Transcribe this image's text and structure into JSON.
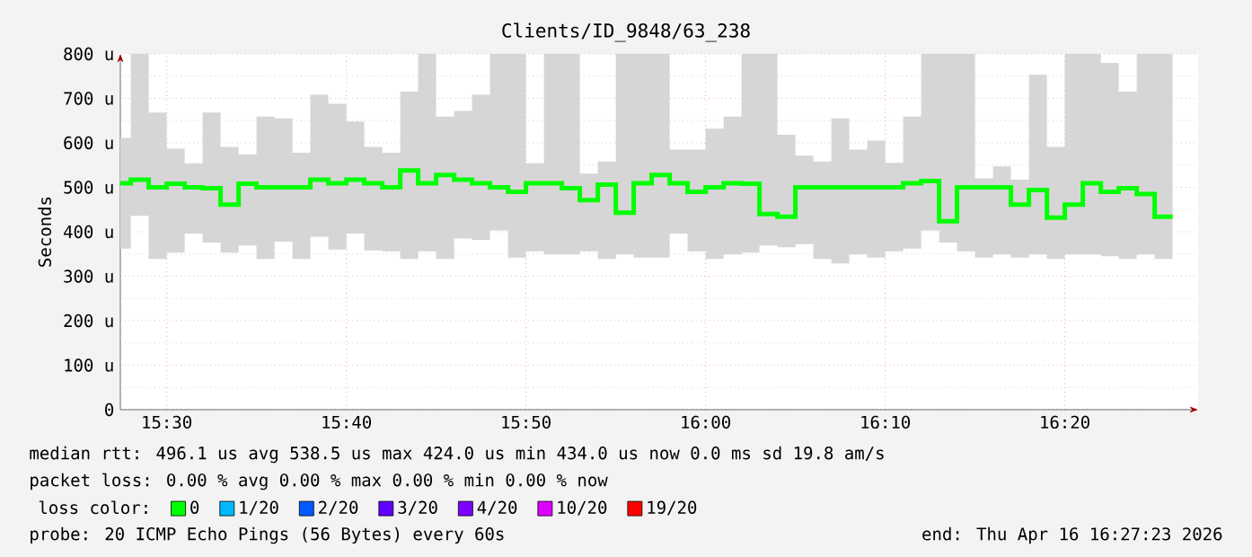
{
  "chart_data": {
    "type": "step",
    "title": "Clients/ID_9848/63_238",
    "ylabel": "Seconds",
    "x": [
      15.457,
      15.4667,
      15.4833,
      15.5,
      15.5167,
      15.5333,
      15.55,
      15.5667,
      15.5833,
      15.6,
      15.6167,
      15.6333,
      15.65,
      15.6667,
      15.6833,
      15.7,
      15.7167,
      15.7333,
      15.75,
      15.7667,
      15.7833,
      15.8,
      15.8167,
      15.8333,
      15.85,
      15.8667,
      15.8833,
      15.9,
      15.9167,
      15.9333,
      15.95,
      15.9667,
      15.9833,
      16.0,
      16.0167,
      16.0333,
      16.05,
      16.0667,
      16.0833,
      16.1,
      16.1167,
      16.1333,
      16.15,
      16.1667,
      16.1833,
      16.2,
      16.2167,
      16.2333,
      16.25,
      16.2667,
      16.2833,
      16.3,
      16.3167,
      16.3333,
      16.35,
      16.3667,
      16.3833,
      16.4,
      16.4167,
      16.4333
    ],
    "series": [
      {
        "name": "0",
        "color": "#00ff00",
        "values": [
          509,
          517,
          500,
          508,
          500,
          498,
          461,
          508,
          500,
          500,
          500,
          517,
          509,
          517,
          509,
          500,
          538,
          509,
          528,
          517,
          509,
          500,
          490,
          509,
          509,
          498,
          471,
          506,
          443,
          509,
          528,
          509,
          490,
          500,
          509,
          508,
          440,
          434,
          500,
          500,
          500,
          500,
          500,
          500,
          509,
          514,
          424,
          500,
          500,
          500,
          461,
          494,
          432,
          461,
          509,
          490,
          498,
          485,
          434,
          434
        ],
        "lower": [
          362,
          436,
          339,
          353,
          396,
          376,
          353,
          369,
          339,
          378,
          339,
          389,
          360,
          396,
          358,
          356,
          339,
          356,
          339,
          385,
          382,
          403,
          342,
          356,
          349,
          349,
          356,
          339,
          349,
          342,
          342,
          396,
          356,
          339,
          349,
          353,
          369,
          365,
          372,
          339,
          329,
          349,
          342,
          356,
          362,
          403,
          376,
          356,
          342,
          349,
          342,
          349,
          339,
          349,
          349,
          345,
          339,
          349,
          339,
          339
        ],
        "upper": [
          611,
          800,
          668,
          587,
          554,
          668,
          591,
          574,
          659,
          655,
          578,
          708,
          688,
          648,
          591,
          578,
          715,
          800,
          659,
          672,
          708,
          800,
          800,
          554,
          800,
          800,
          531,
          558,
          800,
          800,
          800,
          585,
          585,
          632,
          659,
          800,
          800,
          618,
          571,
          558,
          655,
          585,
          605,
          555,
          659,
          800,
          800,
          800,
          520,
          547,
          517,
          753,
          591,
          800,
          800,
          780,
          715,
          800,
          800,
          800
        ]
      },
      {
        "name": "1/20",
        "color": "#00b8ff",
        "values": [
          null,
          null,
          null,
          null,
          null,
          null,
          null,
          null,
          null,
          null,
          null,
          null,
          null,
          null,
          null,
          null,
          null,
          null,
          null,
          null,
          null,
          null,
          null,
          null,
          null,
          null,
          null,
          null,
          null,
          null,
          null,
          null,
          null,
          null,
          null,
          null,
          null,
          null,
          null,
          null,
          null,
          null,
          null,
          null,
          null,
          null,
          null,
          null,
          null,
          null,
          null,
          null,
          null,
          null,
          null,
          null,
          null,
          null,
          null,
          null
        ]
      },
      {
        "name": "2/20",
        "color": "#0059ff",
        "values": [
          null,
          null,
          null,
          null,
          null,
          null,
          null,
          null,
          null,
          null,
          null,
          null,
          null,
          null,
          null,
          null,
          null,
          null,
          null,
          null,
          null,
          null,
          null,
          null,
          null,
          null,
          null,
          null,
          null,
          null,
          null,
          null,
          null,
          null,
          null,
          null,
          null,
          null,
          null,
          null,
          null,
          null,
          null,
          null,
          null,
          null,
          null,
          null,
          null,
          null,
          null,
          null,
          null,
          null,
          null,
          null,
          null,
          null,
          null,
          null
        ]
      },
      {
        "name": "3/20",
        "color": "#5e00ff",
        "values": [
          null,
          null,
          null,
          null,
          null,
          null,
          null,
          null,
          null,
          null,
          null,
          null,
          null,
          null,
          null,
          null,
          null,
          null,
          null,
          null,
          null,
          null,
          null,
          null,
          null,
          null,
          null,
          null,
          null,
          null,
          null,
          null,
          null,
          null,
          null,
          null,
          null,
          null,
          null,
          null,
          null,
          null,
          null,
          null,
          null,
          null,
          null,
          null,
          null,
          null,
          null,
          null,
          null,
          null,
          null,
          null,
          null,
          null,
          null,
          null
        ]
      },
      {
        "name": "4/20",
        "color": "#7e00ff",
        "values": [
          null,
          null,
          null,
          null,
          null,
          null,
          null,
          null,
          null,
          null,
          null,
          null,
          null,
          null,
          null,
          null,
          null,
          null,
          null,
          null,
          null,
          null,
          null,
          null,
          null,
          null,
          null,
          null,
          null,
          null,
          null,
          null,
          null,
          null,
          null,
          null,
          null,
          null,
          null,
          null,
          null,
          null,
          null,
          null,
          null,
          null,
          null,
          null,
          null,
          null,
          null,
          null,
          null,
          null,
          null,
          null,
          null,
          null,
          null,
          null
        ]
      },
      {
        "name": "10/20",
        "color": "#dd00ff",
        "values": [
          null,
          null,
          null,
          null,
          null,
          null,
          null,
          null,
          null,
          null,
          null,
          null,
          null,
          null,
          null,
          null,
          null,
          null,
          null,
          null,
          null,
          null,
          null,
          null,
          null,
          null,
          null,
          null,
          null,
          null,
          null,
          null,
          null,
          null,
          null,
          null,
          null,
          null,
          null,
          null,
          null,
          null,
          null,
          null,
          null,
          null,
          null,
          null,
          null,
          null,
          null,
          null,
          null,
          null,
          null,
          null,
          null,
          null,
          null,
          null
        ]
      },
      {
        "name": "19/20",
        "color": "#ff0000",
        "values": [
          null,
          null,
          null,
          null,
          null,
          null,
          null,
          null,
          null,
          null,
          null,
          null,
          null,
          null,
          null,
          null,
          null,
          null,
          null,
          null,
          null,
          null,
          null,
          null,
          null,
          null,
          null,
          null,
          null,
          null,
          null,
          null,
          null,
          null,
          null,
          null,
          null,
          null,
          null,
          null,
          null,
          null,
          null,
          null,
          null,
          null,
          null,
          null,
          null,
          null,
          null,
          null,
          null,
          null,
          null,
          null,
          null,
          null,
          null,
          null
        ]
      }
    ],
    "legend_title": "loss color:",
    "legend": "bottom",
    "xlim": [
      15.457,
      16.457
    ],
    "xticks": [
      {
        "value": 15.5,
        "label": "15:30"
      },
      {
        "value": 15.6667,
        "label": "15:40"
      },
      {
        "value": 15.8333,
        "label": "15:50"
      },
      {
        "value": 16.0,
        "label": "16:00"
      },
      {
        "value": 16.1667,
        "label": "16:10"
      },
      {
        "value": 16.3333,
        "label": "16:20"
      }
    ],
    "ylim": [
      0,
      800
    ],
    "yticks": [
      0,
      {
        "value": 100,
        "label": "100 u"
      },
      {
        "value": 200,
        "label": "200 u"
      },
      {
        "value": 300,
        "label": "300 u"
      },
      {
        "value": 400,
        "label": "400 u"
      },
      {
        "value": 500,
        "label": "500 u"
      },
      {
        "value": 600,
        "label": "600 u"
      },
      {
        "value": 700,
        "label": "700 u"
      },
      {
        "value": 800,
        "label": "800 u"
      }
    ],
    "grid": true,
    "annotations": [
      "median rtt:  496.1 us avg  538.5 us max  424.0 us min  434.0 us now  0.0 ms sd  19.8  am/s",
      "packet loss: 0.00 % avg  0.00 % max  0.00 % min  0.00 % now",
      "probe:  20 ICMP Echo Pings (56 Bytes) every 60s",
      "end: Thu Apr 16 16:27:23 2026"
    ]
  }
}
